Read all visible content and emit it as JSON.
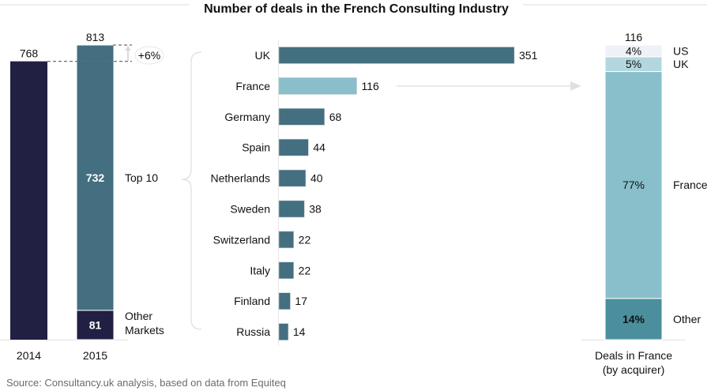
{
  "chart_data": [
    {
      "type": "bar",
      "subtype": "stacked",
      "title": "Number of deals in the French Consulting Industry",
      "categories": [
        "2014",
        "2015"
      ],
      "totals": [
        768,
        813
      ],
      "series": [
        {
          "name": "Other Markets",
          "values": [
            null,
            81
          ],
          "color": "#211f42"
        },
        {
          "name": "Top 10",
          "values": [
            null,
            732
          ],
          "color": "#436f80"
        }
      ],
      "total_2014_color": "#211f42",
      "growth_annotation": "+6%",
      "ylim": [
        0,
        813
      ]
    },
    {
      "type": "bar",
      "orientation": "horizontal",
      "categories": [
        "UK",
        "France",
        "Germany",
        "Spain",
        "Netherlands",
        "Sweden",
        "Switzerland",
        "Italy",
        "Finland",
        "Russia"
      ],
      "values": [
        351,
        116,
        68,
        44,
        40,
        38,
        22,
        22,
        17,
        14
      ],
      "highlight": "France",
      "color": "#436f80",
      "highlight_color": "#88bfca",
      "group_label": "Top 10",
      "xlim": [
        0,
        351
      ]
    },
    {
      "type": "bar",
      "subtype": "stacked-100",
      "category": "Deals in France (by acquirer)",
      "category_lines": [
        "Deals in France",
        "(by acquirer)"
      ],
      "total": 116,
      "segments": [
        {
          "name": "Other",
          "percent": 14,
          "label": "14%",
          "color": "#4b8f9f",
          "label_color": "#ffffff"
        },
        {
          "name": "France",
          "percent": 77,
          "label": "77%",
          "color": "#88bfca",
          "label_color": "#111111"
        },
        {
          "name": "UK",
          "percent": 5,
          "label": "5%",
          "color": "#b3d7de",
          "label_color": "#111111"
        },
        {
          "name": "US",
          "percent": 4,
          "label": "4%",
          "color": "#eef1f7",
          "label_color": "#111111"
        }
      ]
    }
  ],
  "source": "Source: Consultancy.uk analysis, based on data from Equiteq"
}
